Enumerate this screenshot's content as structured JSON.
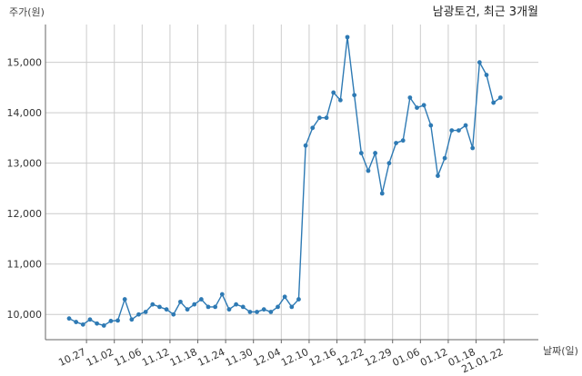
{
  "chart_data": {
    "type": "line",
    "title": "남광토건, 최근 3개월",
    "xlabel": "날짜(일)",
    "ylabel": "주가(원)",
    "ylim": [
      9500,
      15750
    ],
    "grid": true,
    "y_ticks": [
      10000,
      11000,
      12000,
      13000,
      14000,
      15000
    ],
    "y_tick_labels": [
      "10,000",
      "11,000",
      "12,000",
      "13,000",
      "14,000",
      "15,000"
    ],
    "x_tick_labels": [
      "10.27",
      "11.02",
      "11.06",
      "11.12",
      "11.18",
      "11.24",
      "11.30",
      "12.04",
      "12.10",
      "12.16",
      "12.22",
      "12.29",
      "01.06",
      "01.12",
      "01.18",
      "21.01.22"
    ],
    "x_tick_positions": [
      2.5,
      6.5,
      10.5,
      14.5,
      18.5,
      22.5,
      26.5,
      30.5,
      34.5,
      38.5,
      42.5,
      46.5,
      50.5,
      54.5,
      58.5,
      62.5
    ],
    "series": [
      {
        "color": "#2e7ab4",
        "values": [
          9920,
          9850,
          9800,
          9900,
          9820,
          9780,
          9870,
          9880,
          10300,
          9900,
          10000,
          10050,
          10200,
          10150,
          10100,
          10000,
          10250,
          10100,
          10200,
          10300,
          10150,
          10150,
          10400,
          10100,
          10200,
          10150,
          10050,
          10050,
          10100,
          10050,
          10150,
          10350,
          10150,
          10300,
          13350,
          13700,
          13900,
          13900,
          14400,
          14250,
          15500,
          14350,
          13200,
          12850,
          13200,
          12400,
          13000,
          13400,
          13450,
          14300,
          14100,
          14150,
          13750,
          12750,
          13100,
          13650,
          13650,
          13750,
          13300,
          15000,
          14750,
          14200,
          14300
        ]
      }
    ]
  }
}
